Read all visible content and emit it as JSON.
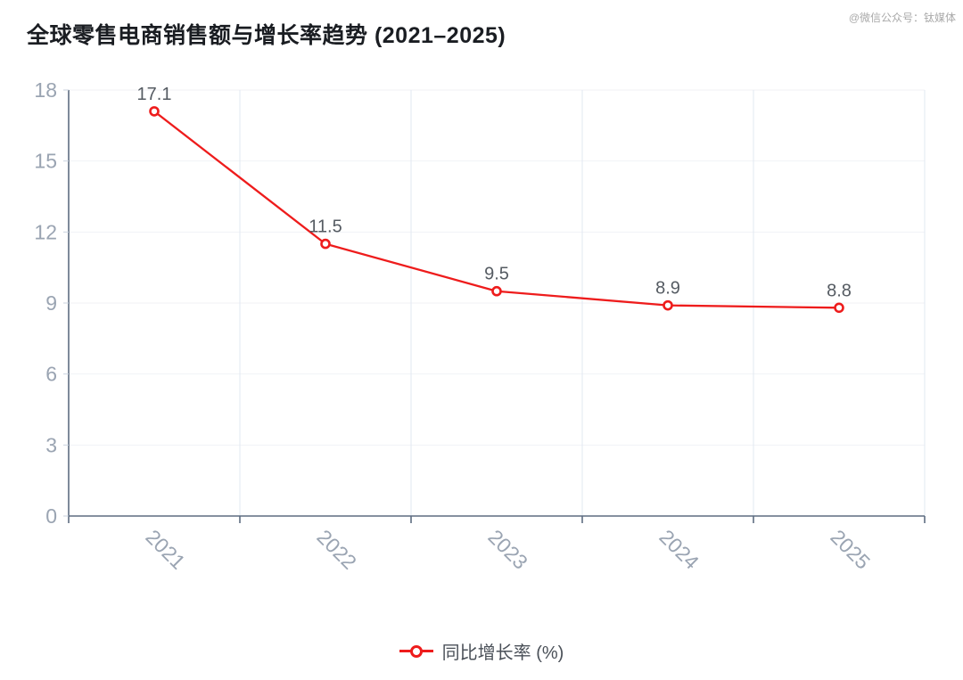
{
  "header": {
    "title": "全球零售电商销售额与增长率趋势 (2021–2025)",
    "watermark": "@微信公众号：钛媒体"
  },
  "legend": {
    "label": "同比增长率 (%)"
  },
  "chart_data": {
    "type": "line",
    "title": "全球零售电商销售额与增长率趋势 (2021–2025)",
    "categories": [
      "2021",
      "2022",
      "2023",
      "2024",
      "2025"
    ],
    "series": [
      {
        "name": "同比增长率 (%)",
        "values": [
          17.1,
          11.5,
          9.5,
          8.9,
          8.8
        ],
        "color": "#ee1c1c"
      }
    ],
    "xlabel": "",
    "ylabel": "",
    "ylim": [
      0,
      18
    ],
    "yticks": [
      0,
      3,
      6,
      9,
      12,
      15,
      18
    ],
    "grid": true,
    "data_labels": true,
    "legend_position": "bottom"
  },
  "colors": {
    "accent": "#ee1c1c",
    "axis_line": "#5e6d81",
    "y_tick": "#c9d2de",
    "grid_horizontal": "#f0f2f6",
    "grid_vertical": "#e2e8f2",
    "tick_label": "#9aa4b2",
    "data_label": "#555b62",
    "title_text": "#1a1d22",
    "watermark_text": "#a9a9a9"
  }
}
